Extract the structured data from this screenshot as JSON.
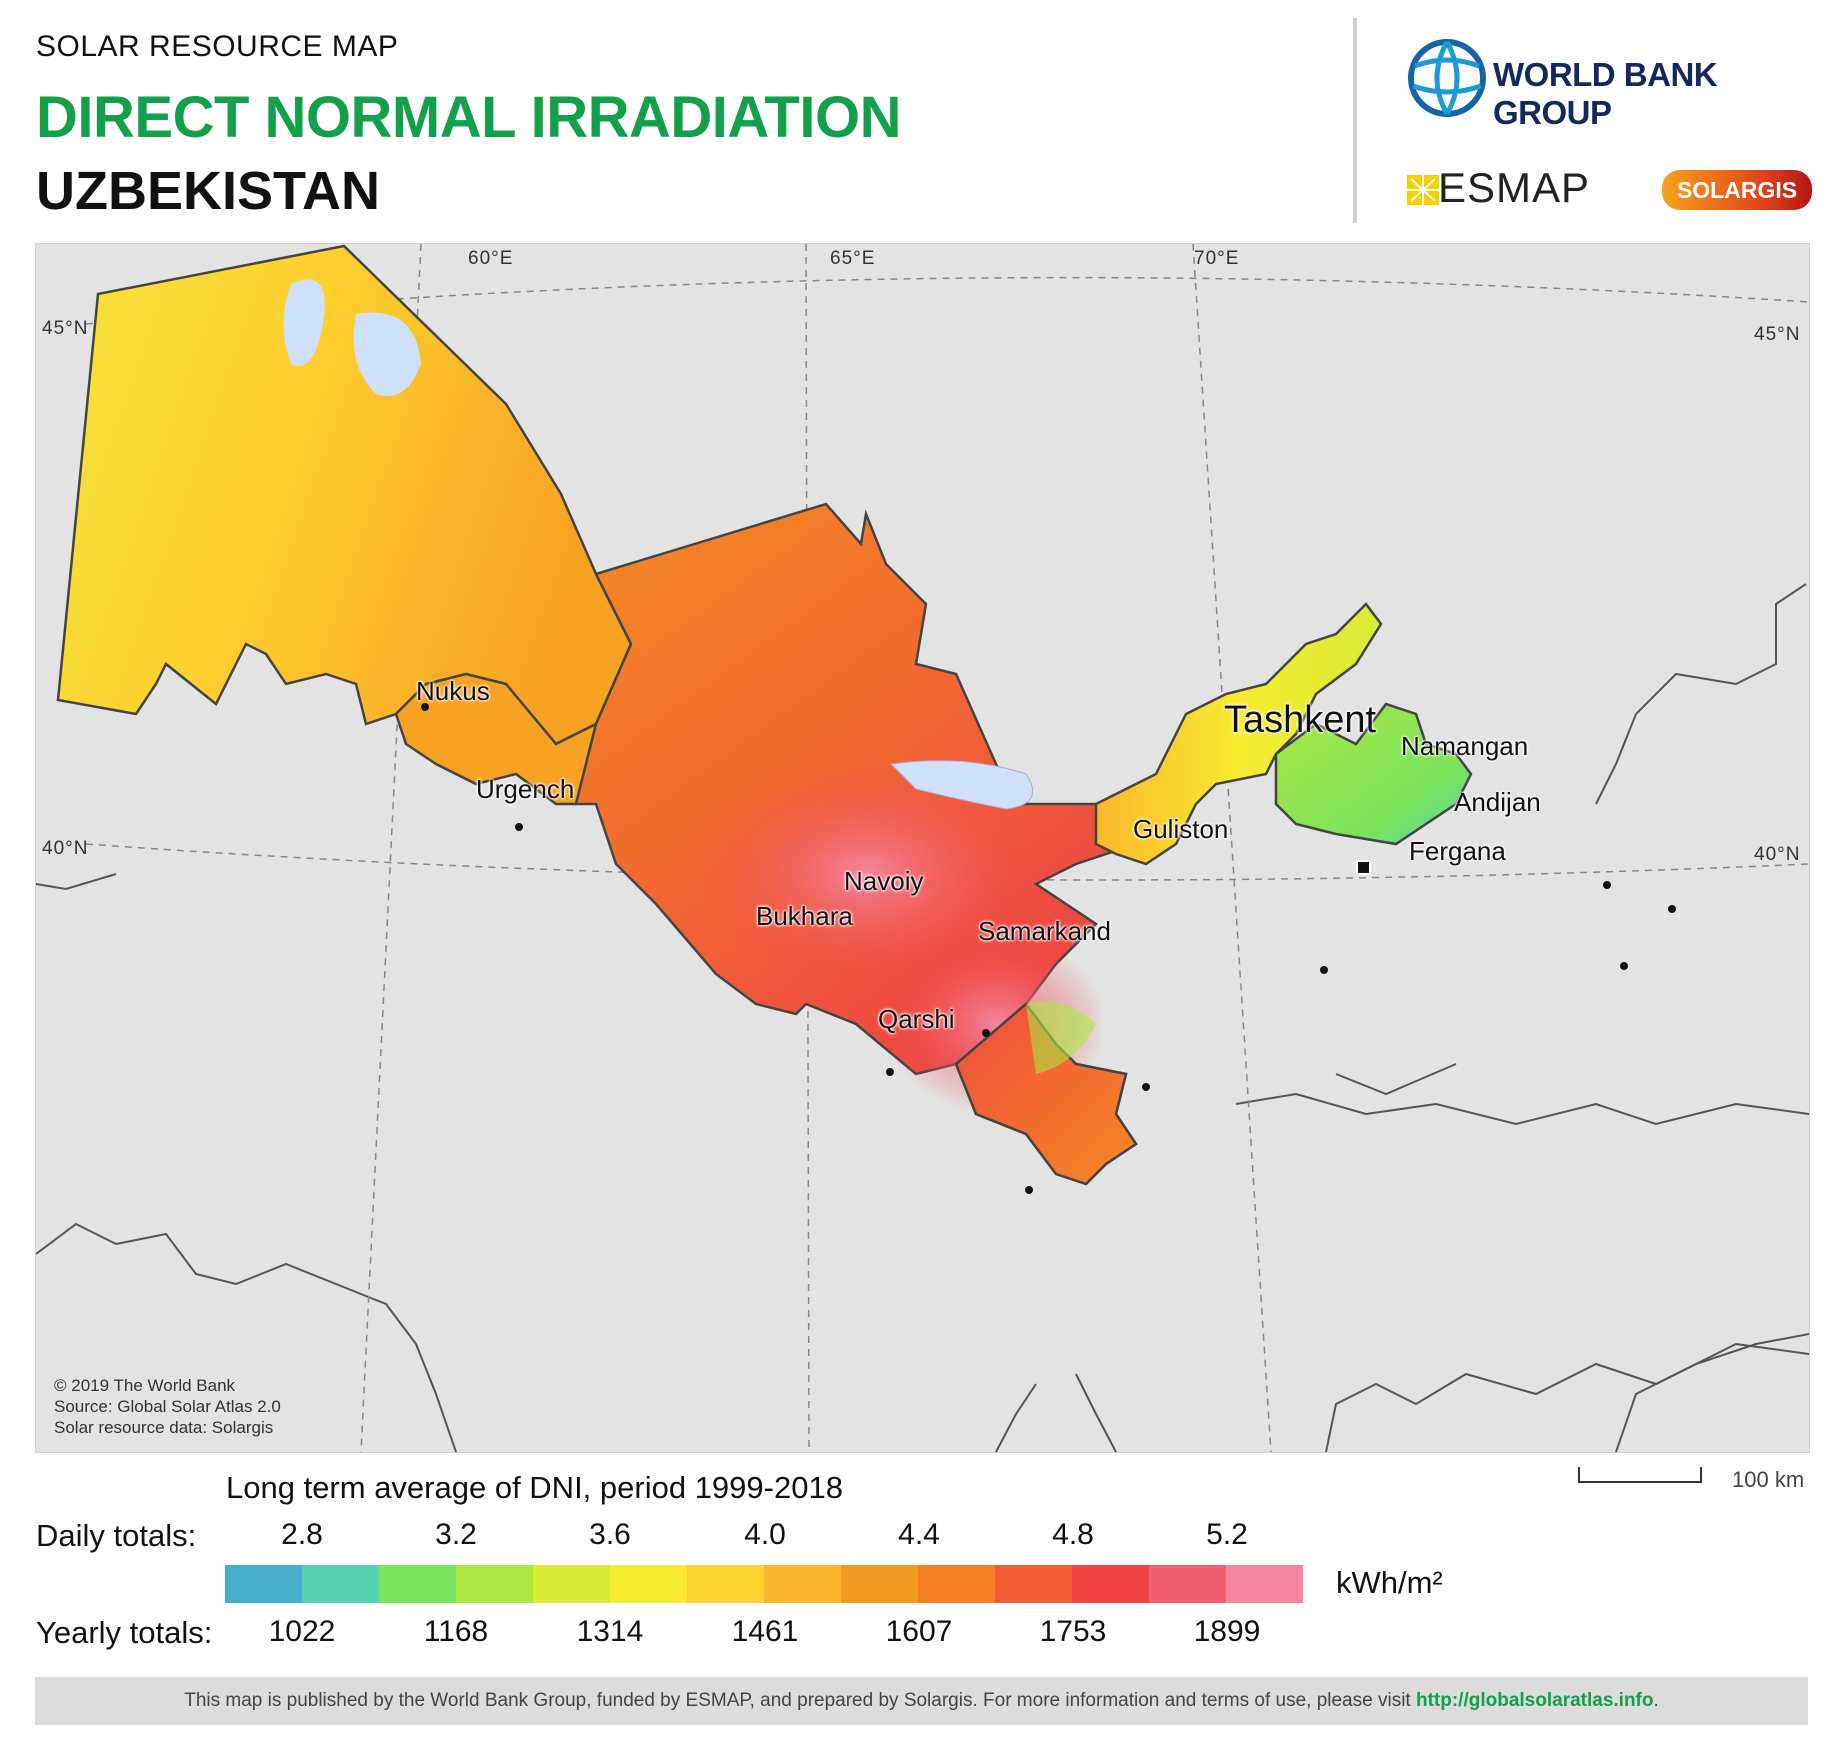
{
  "header": {
    "kicker": "SOLAR RESOURCE MAP",
    "title": "DIRECT NORMAL IRRADIATION",
    "country": "UZBEKISTAN"
  },
  "logos": {
    "world_bank": "WORLD BANK GROUP",
    "esmap": "ESMAP",
    "solargis": "SOLARGIS"
  },
  "map": {
    "graticule_labels": {
      "lon_60": "60°E",
      "lon_65": "65°E",
      "lon_70": "70°E",
      "lat_45_left": "45°N",
      "lat_45_right": "45°N",
      "lat_40_left": "40°N",
      "lat_40_right": "40°N"
    },
    "cities": {
      "nukus": "Nukus",
      "urgench": "Urgench",
      "tashkent": "Tashkent",
      "namangan": "Namangan",
      "andijan": "Andijan",
      "guliston": "Guliston",
      "fergana": "Fergana",
      "navoiy": "Navoiy",
      "bukhara": "Bukhara",
      "samarkand": "Samarkand",
      "qarshi": "Qarshi"
    },
    "credits": {
      "line1": "© 2019 The World Bank",
      "line2": "Source: Global Solar Atlas 2.0",
      "line3": "Solar resource data: Solargis"
    }
  },
  "legend": {
    "title": "Long term average of DNI, period 1999-2018",
    "daily_label": "Daily totals:",
    "yearly_label": "Yearly totals:",
    "daily_ticks": [
      "2.8",
      "3.2",
      "3.6",
      "4.0",
      "4.4",
      "4.8",
      "5.2"
    ],
    "yearly_ticks": [
      "1022",
      "1168",
      "1314",
      "1461",
      "1607",
      "1753",
      "1899"
    ],
    "unit": "kWh/m²",
    "colors": [
      "#44afc8",
      "#55d3ac",
      "#79e35c",
      "#aee643",
      "#d9eb35",
      "#f7ec31",
      "#fed42f",
      "#fbb72c",
      "#f59a23",
      "#f47f22",
      "#f25a34",
      "#ef4443",
      "#f35f73",
      "#f587a0"
    ]
  },
  "scale_bar": {
    "label": "100 km"
  },
  "footer": {
    "text": "This map is published by the World Bank Group, funded by ESMAP, and prepared by Solargis. For more information and terms of use, please visit ",
    "link": "http://globalsolaratlas.info",
    "end": "."
  }
}
